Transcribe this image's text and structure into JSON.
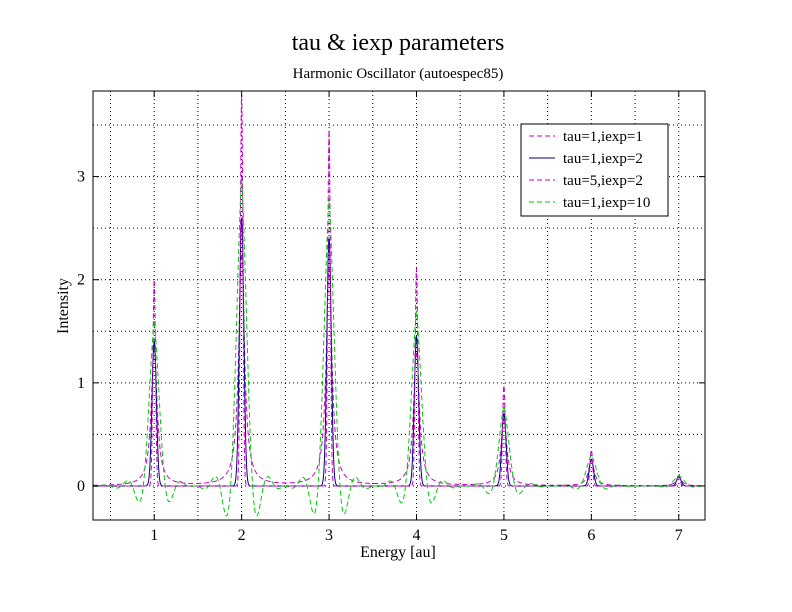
{
  "chart_data": {
    "type": "line",
    "title": "tau & iexp parameters",
    "subtitle": "Harmonic Oscillator (autoespec85)",
    "xlabel": "Energy [au]",
    "ylabel": "Intensity",
    "xlim": [
      0.3,
      7.3
    ],
    "ylim": [
      -0.33,
      3.83
    ],
    "xticks": [
      1,
      2,
      3,
      4,
      5,
      6,
      7
    ],
    "yticks": [
      0,
      1,
      2,
      3
    ],
    "xgrid_minor": [
      0.5,
      1.5,
      2.5,
      3.5,
      4.5,
      5.5,
      6.5
    ],
    "ygrid_minor": [
      0.5,
      1.5,
      2.5,
      3.5
    ],
    "grid": true,
    "legend_position": "top-right",
    "peak_positions": [
      1,
      2,
      3,
      4,
      5,
      6,
      7
    ],
    "series": [
      {
        "name": "tau=1,iexp=1",
        "color": "#cc00cc",
        "dash": "dashed",
        "peak_heights": [
          1.35,
          2.25,
          2.1,
          1.3,
          0.65,
          0.24,
          0.08
        ],
        "width": 0.04,
        "shape": "lorentz"
      },
      {
        "name": "tau=1,iexp=2",
        "color": "#000080",
        "dash": "solid",
        "peak_heights": [
          1.4,
          2.6,
          2.4,
          1.45,
          0.7,
          0.26,
          0.09
        ],
        "width": 0.025,
        "shape": "gauss"
      },
      {
        "name": "tau=5,iexp=2",
        "color": "#cc00cc",
        "dash": "dashed",
        "peak_heights": [
          2.0,
          3.78,
          3.45,
          2.12,
          0.98,
          0.35,
          0.12
        ],
        "width": 0.015,
        "shape": "gauss"
      },
      {
        "name": "tau=1,iexp=10",
        "color": "#00cc00",
        "dash": "dashed",
        "peak_heights": [
          1.6,
          3.0,
          2.8,
          1.7,
          0.78,
          0.3,
          0.1
        ],
        "width": 0.025,
        "shape": "sinc"
      }
    ]
  }
}
